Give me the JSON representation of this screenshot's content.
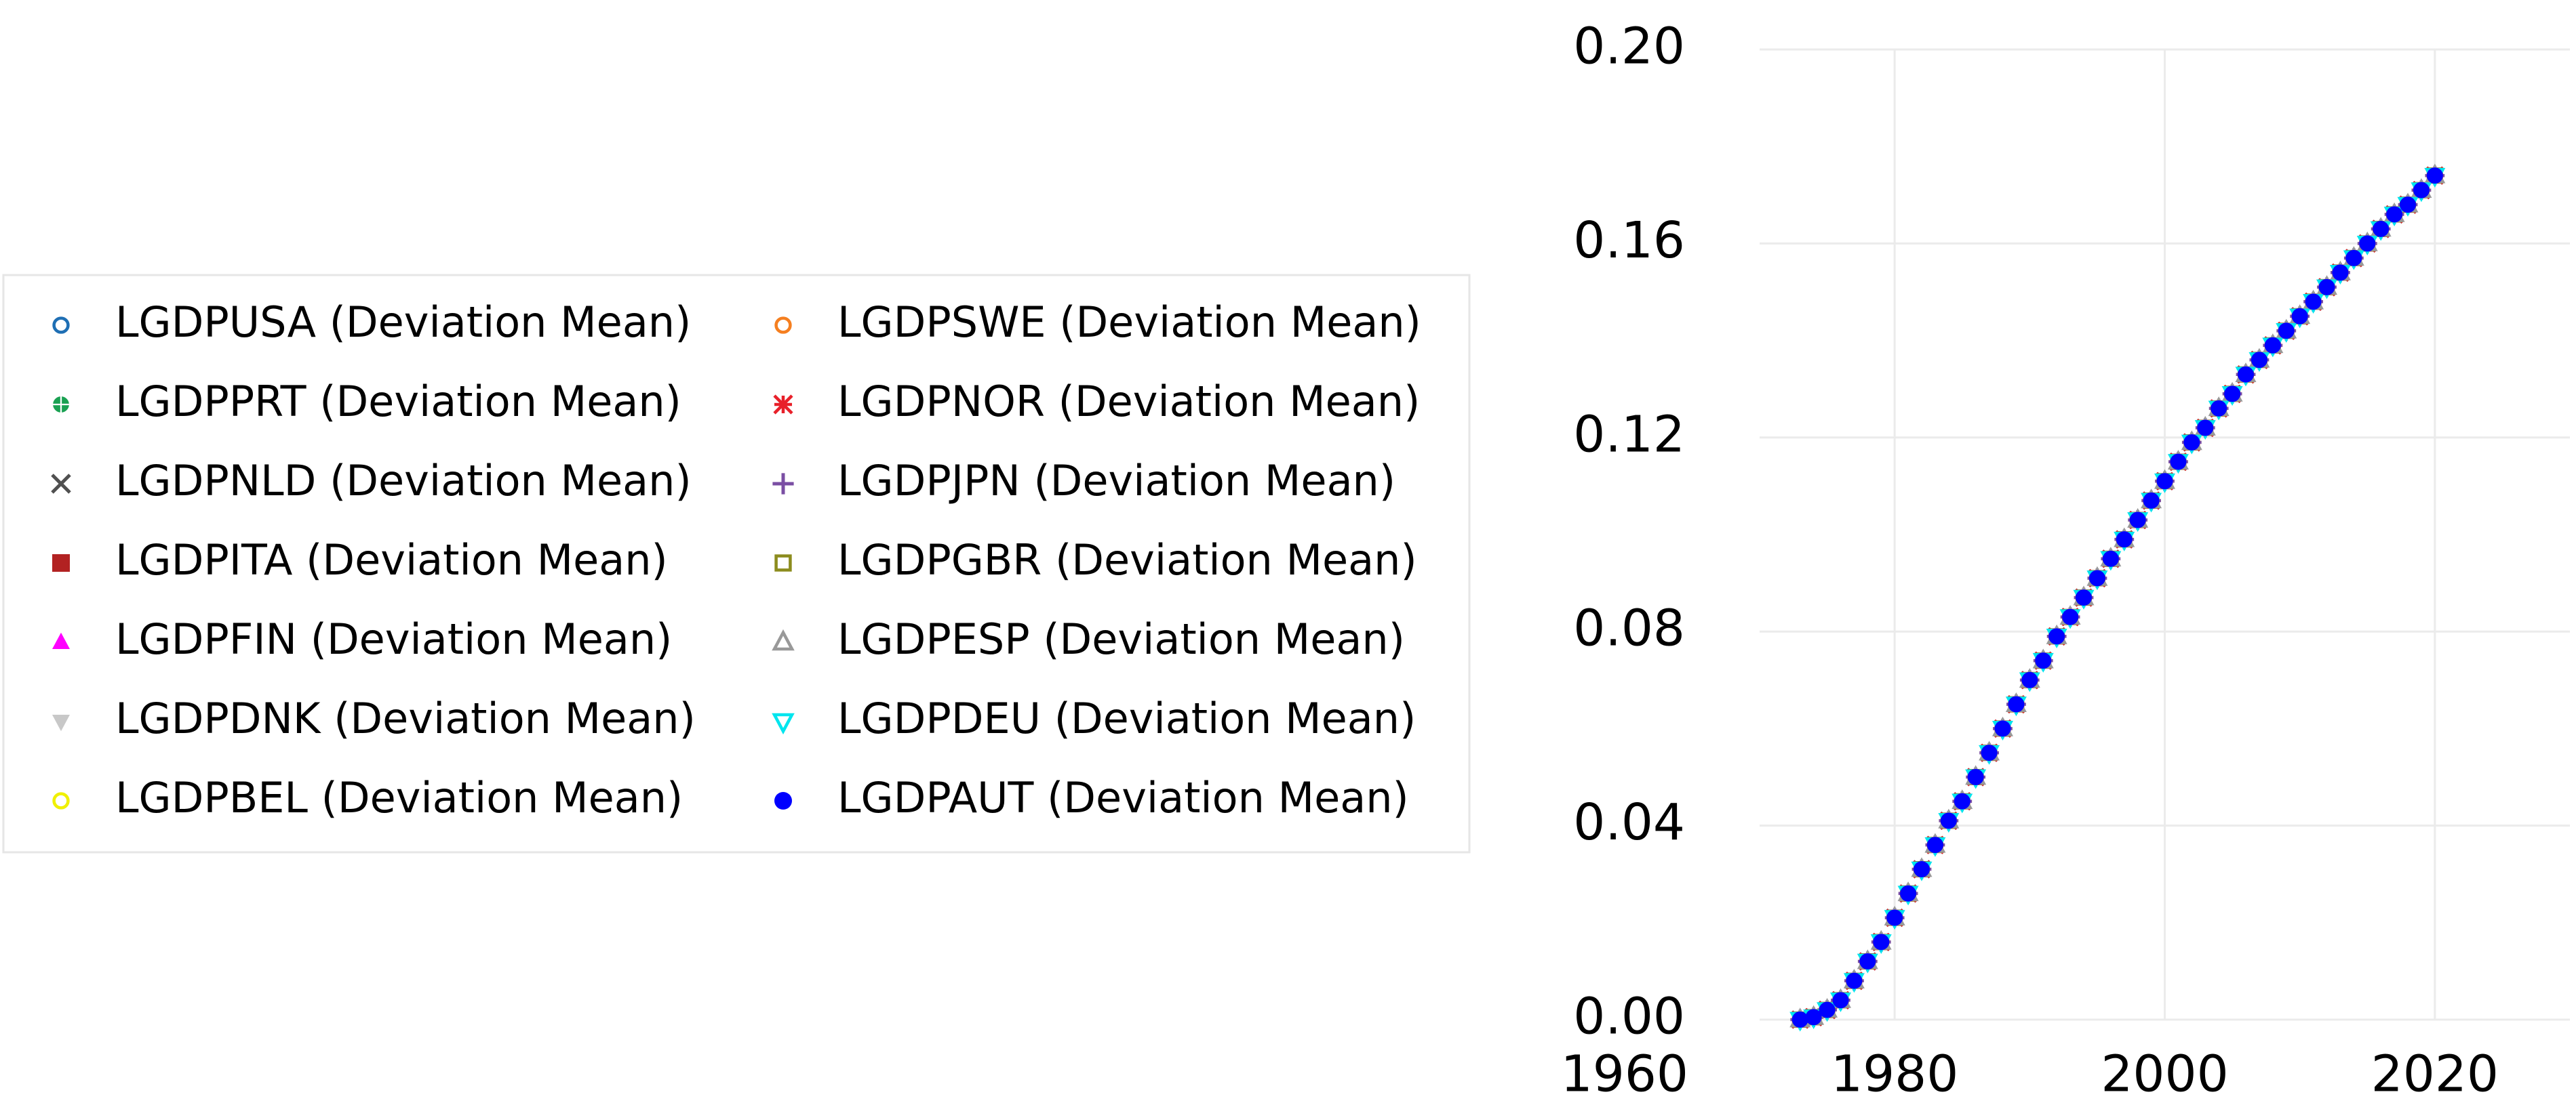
{
  "chart_data": {
    "type": "scatter",
    "grid": true,
    "legend": "left",
    "xlim": [
      1970,
      2030
    ],
    "xticks": [
      1960,
      1980,
      2000,
      2020
    ],
    "ylim": [
      0,
      0.2
    ],
    "yticks": [
      {
        "value": 0,
        "label": "0.00"
      },
      0.04,
      0.08,
      0.12,
      0.16,
      {
        "value": 0.2,
        "label": "0.20"
      }
    ],
    "x": [
      1973,
      1974,
      1975,
      1976,
      1977,
      1978,
      1979,
      1980,
      1981,
      1982,
      1983,
      1984,
      1985,
      1986,
      1987,
      1988,
      1989,
      1990,
      1991,
      1992,
      1993,
      1994,
      1995,
      1996,
      1997,
      1998,
      1999,
      2000,
      2001,
      2002,
      2003,
      2004,
      2005,
      2006,
      2007,
      2008,
      2009,
      2010,
      2011,
      2012,
      2013,
      2014,
      2015,
      2016,
      2017,
      2018,
      2019,
      2020
    ],
    "series": [
      {
        "name": "LGDPUSA (Deviation Mean)",
        "color": "#1f6fb4",
        "marker": "open-circle",
        "values": [
          0,
          0.0005,
          0.002,
          0.004,
          0.008,
          0.012,
          0.016,
          0.021,
          0.026,
          0.031,
          0.036,
          0.041,
          0.045,
          0.05,
          0.055,
          0.06,
          0.065,
          0.07,
          0.074,
          0.079,
          0.083,
          0.087,
          0.091,
          0.095,
          0.099,
          0.103,
          0.107,
          0.111,
          0.115,
          0.119,
          0.122,
          0.126,
          0.129,
          0.133,
          0.136,
          0.139,
          0.142,
          0.145,
          0.148,
          0.151,
          0.154,
          0.157,
          0.16,
          0.163,
          0.166,
          0.168,
          0.171,
          0.174
        ]
      },
      {
        "name": "LGDPPRT (Deviation Mean)",
        "color": "#1aa152",
        "marker": "circle-plus",
        "values": [
          0,
          0.0005,
          0.002,
          0.004,
          0.008,
          0.012,
          0.016,
          0.021,
          0.026,
          0.031,
          0.036,
          0.041,
          0.045,
          0.05,
          0.055,
          0.06,
          0.065,
          0.07,
          0.074,
          0.079,
          0.083,
          0.087,
          0.091,
          0.095,
          0.099,
          0.103,
          0.107,
          0.111,
          0.115,
          0.119,
          0.122,
          0.126,
          0.129,
          0.133,
          0.136,
          0.139,
          0.142,
          0.145,
          0.148,
          0.151,
          0.154,
          0.157,
          0.16,
          0.163,
          0.166,
          0.168,
          0.171,
          0.174
        ]
      },
      {
        "name": "LGDPNLD (Deviation Mean)",
        "color": "#505050",
        "marker": "x",
        "values": [
          0,
          0.0005,
          0.002,
          0.004,
          0.008,
          0.012,
          0.016,
          0.021,
          0.026,
          0.031,
          0.036,
          0.041,
          0.045,
          0.05,
          0.055,
          0.06,
          0.065,
          0.07,
          0.074,
          0.079,
          0.083,
          0.087,
          0.091,
          0.095,
          0.099,
          0.103,
          0.107,
          0.111,
          0.115,
          0.119,
          0.122,
          0.126,
          0.129,
          0.133,
          0.136,
          0.139,
          0.142,
          0.145,
          0.148,
          0.151,
          0.154,
          0.157,
          0.16,
          0.163,
          0.166,
          0.168,
          0.171,
          0.174
        ]
      },
      {
        "name": "LGDPITA (Deviation Mean)",
        "color": "#b22222",
        "marker": "square",
        "values": [
          0,
          0.0005,
          0.002,
          0.004,
          0.008,
          0.012,
          0.016,
          0.021,
          0.026,
          0.031,
          0.036,
          0.041,
          0.045,
          0.05,
          0.055,
          0.06,
          0.065,
          0.07,
          0.074,
          0.079,
          0.083,
          0.087,
          0.091,
          0.095,
          0.099,
          0.103,
          0.107,
          0.111,
          0.115,
          0.119,
          0.122,
          0.126,
          0.129,
          0.133,
          0.136,
          0.139,
          0.142,
          0.145,
          0.148,
          0.151,
          0.154,
          0.157,
          0.16,
          0.163,
          0.166,
          0.168,
          0.171,
          0.174
        ]
      },
      {
        "name": "LGDPFIN (Deviation Mean)",
        "color": "#ff00ff",
        "marker": "triangle-up",
        "values": [
          0,
          0.0005,
          0.002,
          0.004,
          0.008,
          0.012,
          0.016,
          0.021,
          0.026,
          0.031,
          0.036,
          0.041,
          0.045,
          0.05,
          0.055,
          0.06,
          0.065,
          0.07,
          0.074,
          0.079,
          0.083,
          0.087,
          0.091,
          0.095,
          0.099,
          0.103,
          0.107,
          0.111,
          0.115,
          0.119,
          0.122,
          0.126,
          0.129,
          0.133,
          0.136,
          0.139,
          0.142,
          0.145,
          0.148,
          0.151,
          0.154,
          0.157,
          0.16,
          0.163,
          0.166,
          0.168,
          0.171,
          0.174
        ]
      },
      {
        "name": "LGDPDNK (Deviation Mean)",
        "color": "#c8c8c8",
        "marker": "triangle-down",
        "values": [
          0,
          0.0005,
          0.002,
          0.004,
          0.008,
          0.012,
          0.016,
          0.021,
          0.026,
          0.031,
          0.036,
          0.041,
          0.045,
          0.05,
          0.055,
          0.06,
          0.065,
          0.07,
          0.074,
          0.079,
          0.083,
          0.087,
          0.091,
          0.095,
          0.099,
          0.103,
          0.107,
          0.111,
          0.115,
          0.119,
          0.122,
          0.126,
          0.129,
          0.133,
          0.136,
          0.139,
          0.142,
          0.145,
          0.148,
          0.151,
          0.154,
          0.157,
          0.16,
          0.163,
          0.166,
          0.168,
          0.171,
          0.174
        ]
      },
      {
        "name": "LGDPBEL (Deviation Mean)",
        "color": "#f0f000",
        "marker": "open-circle",
        "values": [
          0,
          0.0005,
          0.002,
          0.004,
          0.008,
          0.012,
          0.016,
          0.021,
          0.026,
          0.031,
          0.036,
          0.041,
          0.045,
          0.05,
          0.055,
          0.06,
          0.065,
          0.07,
          0.074,
          0.079,
          0.083,
          0.087,
          0.091,
          0.095,
          0.099,
          0.103,
          0.107,
          0.111,
          0.115,
          0.119,
          0.122,
          0.126,
          0.129,
          0.133,
          0.136,
          0.139,
          0.142,
          0.145,
          0.148,
          0.151,
          0.154,
          0.157,
          0.16,
          0.163,
          0.166,
          0.168,
          0.171,
          0.174
        ]
      },
      {
        "name": "LGDPSWE (Deviation Mean)",
        "color": "#f57f20",
        "marker": "open-circle",
        "values": [
          0,
          0.0005,
          0.002,
          0.004,
          0.008,
          0.012,
          0.016,
          0.021,
          0.026,
          0.031,
          0.036,
          0.041,
          0.045,
          0.05,
          0.055,
          0.06,
          0.065,
          0.07,
          0.074,
          0.079,
          0.083,
          0.087,
          0.091,
          0.095,
          0.099,
          0.103,
          0.107,
          0.111,
          0.115,
          0.119,
          0.122,
          0.126,
          0.129,
          0.133,
          0.136,
          0.139,
          0.142,
          0.145,
          0.148,
          0.151,
          0.154,
          0.157,
          0.16,
          0.163,
          0.166,
          0.168,
          0.171,
          0.174
        ]
      },
      {
        "name": "LGDPNOR (Deviation Mean)",
        "color": "#e8202a",
        "marker": "asterisk",
        "values": [
          0,
          0.0005,
          0.002,
          0.004,
          0.008,
          0.012,
          0.016,
          0.021,
          0.026,
          0.031,
          0.036,
          0.041,
          0.045,
          0.05,
          0.055,
          0.06,
          0.065,
          0.07,
          0.074,
          0.079,
          0.083,
          0.087,
          0.091,
          0.095,
          0.099,
          0.103,
          0.107,
          0.111,
          0.115,
          0.119,
          0.122,
          0.126,
          0.129,
          0.133,
          0.136,
          0.139,
          0.142,
          0.145,
          0.148,
          0.151,
          0.154,
          0.157,
          0.16,
          0.163,
          0.166,
          0.168,
          0.171,
          0.174
        ]
      },
      {
        "name": "LGDPJPN (Deviation Mean)",
        "color": "#7a4ea3",
        "marker": "plus",
        "values": [
          0,
          0.0005,
          0.002,
          0.004,
          0.008,
          0.012,
          0.016,
          0.021,
          0.026,
          0.031,
          0.036,
          0.041,
          0.045,
          0.05,
          0.055,
          0.06,
          0.065,
          0.07,
          0.074,
          0.079,
          0.083,
          0.087,
          0.091,
          0.095,
          0.099,
          0.103,
          0.107,
          0.111,
          0.115,
          0.119,
          0.122,
          0.126,
          0.129,
          0.133,
          0.136,
          0.139,
          0.142,
          0.145,
          0.148,
          0.151,
          0.154,
          0.157,
          0.16,
          0.163,
          0.166,
          0.168,
          0.171,
          0.174
        ]
      },
      {
        "name": "LGDPGBR (Deviation Mean)",
        "color": "#8c8c1e",
        "marker": "open-square",
        "values": [
          0,
          0.0005,
          0.002,
          0.004,
          0.008,
          0.012,
          0.016,
          0.021,
          0.026,
          0.031,
          0.036,
          0.041,
          0.045,
          0.05,
          0.055,
          0.06,
          0.065,
          0.07,
          0.074,
          0.079,
          0.083,
          0.087,
          0.091,
          0.095,
          0.099,
          0.103,
          0.107,
          0.111,
          0.115,
          0.119,
          0.122,
          0.126,
          0.129,
          0.133,
          0.136,
          0.139,
          0.142,
          0.145,
          0.148,
          0.151,
          0.154,
          0.157,
          0.16,
          0.163,
          0.166,
          0.168,
          0.171,
          0.174
        ]
      },
      {
        "name": "LGDPESP (Deviation Mean)",
        "color": "#999999",
        "marker": "open-triangle-up",
        "values": [
          0,
          0.0005,
          0.002,
          0.004,
          0.008,
          0.012,
          0.016,
          0.021,
          0.026,
          0.031,
          0.036,
          0.041,
          0.045,
          0.05,
          0.055,
          0.06,
          0.065,
          0.07,
          0.074,
          0.079,
          0.083,
          0.087,
          0.091,
          0.095,
          0.099,
          0.103,
          0.107,
          0.111,
          0.115,
          0.119,
          0.122,
          0.126,
          0.129,
          0.133,
          0.136,
          0.139,
          0.142,
          0.145,
          0.148,
          0.151,
          0.154,
          0.157,
          0.16,
          0.163,
          0.166,
          0.168,
          0.171,
          0.174
        ]
      },
      {
        "name": "LGDPDEU (Deviation Mean)",
        "color": "#00e5ee",
        "marker": "open-triangle-down",
        "values": [
          0,
          0.0005,
          0.002,
          0.004,
          0.008,
          0.012,
          0.016,
          0.021,
          0.026,
          0.031,
          0.036,
          0.041,
          0.045,
          0.05,
          0.055,
          0.06,
          0.065,
          0.07,
          0.074,
          0.079,
          0.083,
          0.087,
          0.091,
          0.095,
          0.099,
          0.103,
          0.107,
          0.111,
          0.115,
          0.119,
          0.122,
          0.126,
          0.129,
          0.133,
          0.136,
          0.139,
          0.142,
          0.145,
          0.148,
          0.151,
          0.154,
          0.157,
          0.16,
          0.163,
          0.166,
          0.168,
          0.171,
          0.174
        ]
      },
      {
        "name": "LGDPAUT (Deviation Mean)",
        "color": "#0000ff",
        "marker": "circle",
        "values": [
          0,
          0.0005,
          0.002,
          0.004,
          0.008,
          0.012,
          0.016,
          0.021,
          0.026,
          0.031,
          0.036,
          0.041,
          0.045,
          0.05,
          0.055,
          0.06,
          0.065,
          0.07,
          0.074,
          0.079,
          0.083,
          0.087,
          0.091,
          0.095,
          0.099,
          0.103,
          0.107,
          0.111,
          0.115,
          0.119,
          0.122,
          0.126,
          0.129,
          0.133,
          0.136,
          0.139,
          0.142,
          0.145,
          0.148,
          0.151,
          0.154,
          0.157,
          0.16,
          0.163,
          0.166,
          0.168,
          0.171,
          0.174
        ]
      }
    ]
  }
}
